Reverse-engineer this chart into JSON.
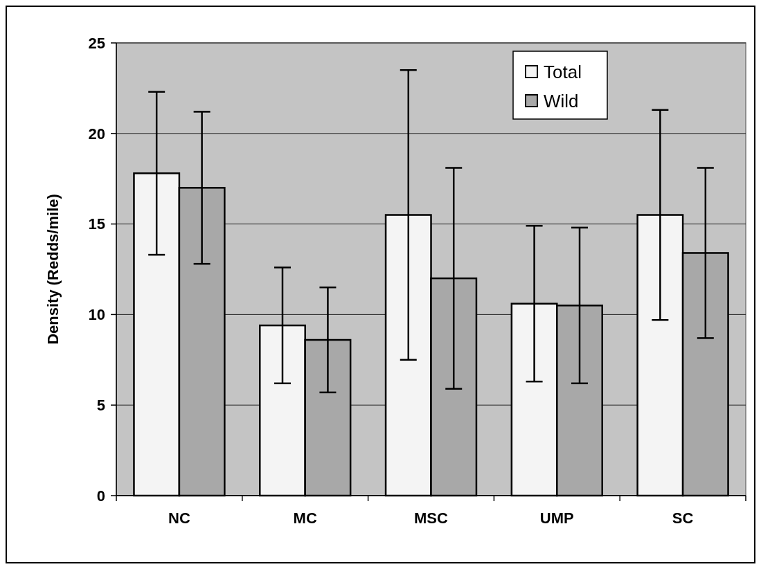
{
  "chart_data": {
    "type": "bar",
    "ylabel": "Density (Redds/mile)",
    "categories": [
      "NC",
      "MC",
      "MSC",
      "UMP",
      "SC"
    ],
    "series": [
      {
        "name": "Total",
        "color": "#f4f4f4",
        "values": [
          17.8,
          9.4,
          15.5,
          10.6,
          15.5
        ],
        "errors": [
          4.5,
          3.2,
          8.0,
          4.3,
          5.8
        ]
      },
      {
        "name": "Wild",
        "color": "#a8a8a8",
        "values": [
          17.0,
          8.6,
          12.0,
          10.5,
          13.4
        ],
        "errors": [
          4.2,
          2.9,
          6.1,
          4.3,
          4.7
        ]
      }
    ],
    "ylim": [
      0,
      25
    ],
    "yticks": [
      0,
      5,
      10,
      15,
      20,
      25
    ],
    "grid": "y",
    "legend": "top right"
  }
}
